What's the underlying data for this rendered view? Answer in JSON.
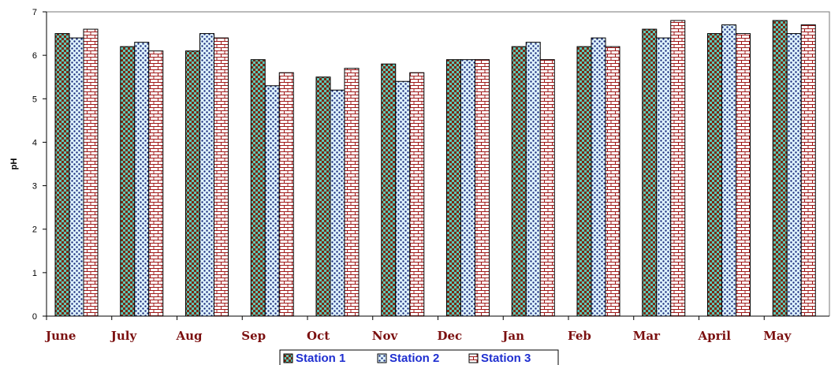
{
  "chart_data": {
    "type": "bar",
    "title": "",
    "xlabel": "",
    "ylabel": "pH",
    "ylim": [
      0,
      7
    ],
    "yticks": [
      0,
      1,
      2,
      3,
      4,
      5,
      6,
      7
    ],
    "grid": false,
    "legend_position": "bottom",
    "categories": [
      "June",
      "July",
      "Aug",
      "Sep",
      "Oct",
      "Nov",
      "Dec",
      "Jan",
      "Feb",
      "Mar",
      "April",
      "May"
    ],
    "series": [
      {
        "name": "Station 1",
        "pattern": "checker",
        "colors": [
          "#5cc8b8",
          "#7a2a12"
        ],
        "values": [
          6.5,
          6.2,
          6.1,
          5.9,
          5.5,
          5.8,
          5.9,
          6.2,
          6.2,
          6.6,
          6.5,
          6.8
        ]
      },
      {
        "name": "Station 2",
        "pattern": "dots",
        "colors": [
          "#dff4ff",
          "#1a2a7a"
        ],
        "values": [
          6.4,
          6.3,
          6.5,
          5.3,
          5.2,
          5.4,
          5.9,
          6.3,
          6.4,
          6.4,
          6.7,
          6.5
        ]
      },
      {
        "name": "Station 3",
        "pattern": "brick",
        "colors": [
          "#ffffff",
          "#a01818"
        ],
        "values": [
          6.6,
          6.1,
          6.4,
          5.6,
          5.7,
          5.6,
          5.9,
          5.9,
          6.2,
          6.8,
          6.5,
          6.7
        ]
      }
    ]
  }
}
